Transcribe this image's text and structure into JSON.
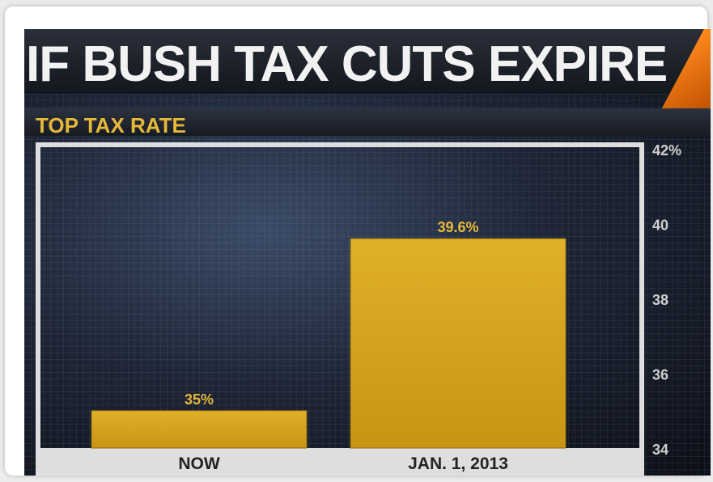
{
  "chart_data": {
    "type": "bar",
    "title": "IF BUSH TAX CUTS EXPIRE",
    "subtitle": "TOP TAX RATE",
    "categories": [
      "NOW",
      "JAN. 1, 2013"
    ],
    "values": [
      35,
      39.6
    ],
    "data_labels": [
      "35%",
      "39.6%"
    ],
    "ylim": [
      34,
      42
    ],
    "y_ticks": [
      {
        "value": 34,
        "label": "34"
      },
      {
        "value": 36,
        "label": "36"
      },
      {
        "value": 38,
        "label": "38"
      },
      {
        "value": 40,
        "label": "40"
      },
      {
        "value": 42,
        "label": "42%"
      }
    ],
    "bar_color": "#e0b028",
    "label_color": "#e6b93a",
    "category_label_bg": "#dedede",
    "grid": false
  }
}
